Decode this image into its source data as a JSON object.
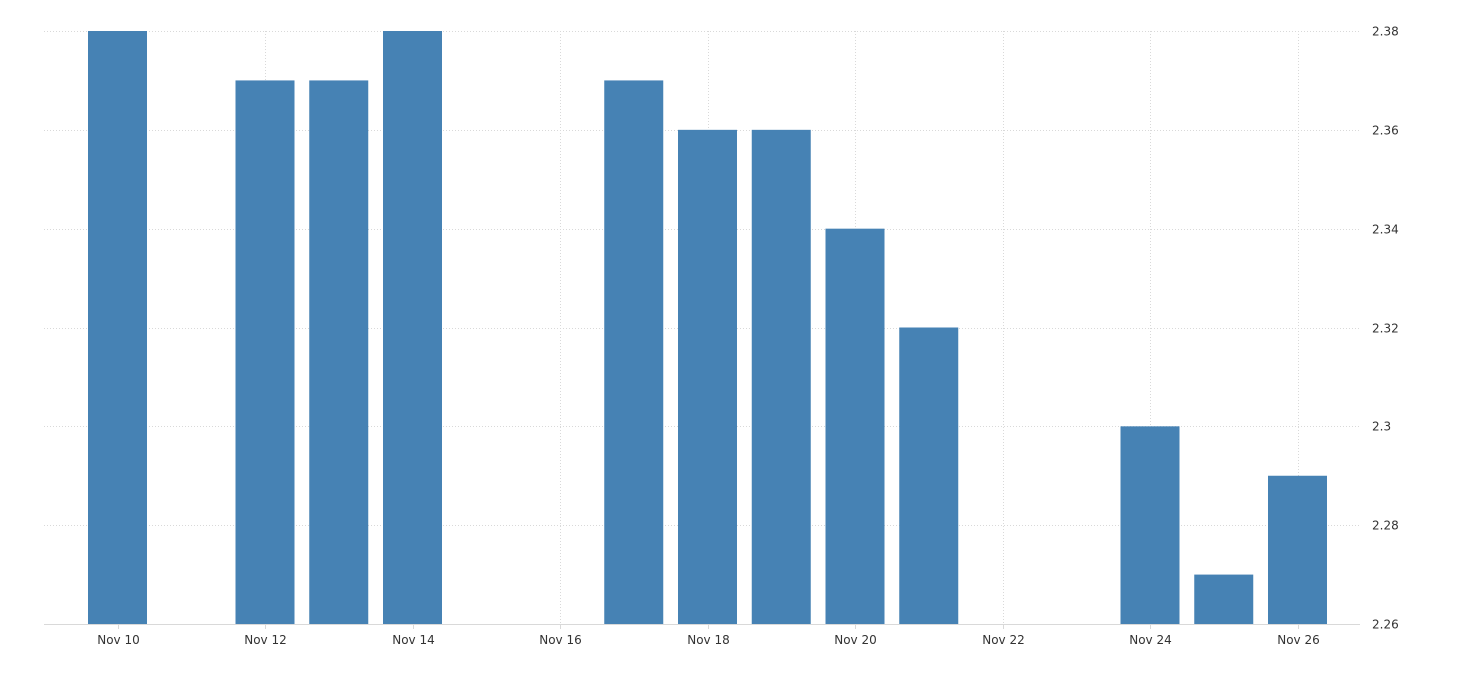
{
  "chart_data": {
    "type": "bar",
    "categories": [
      "Nov 10",
      "Nov 11",
      "Nov 12",
      "Nov 13",
      "Nov 14",
      "Nov 15",
      "Nov 16",
      "Nov 17",
      "Nov 18",
      "Nov 19",
      "Nov 20",
      "Nov 21",
      "Nov 22",
      "Nov 23",
      "Nov 24",
      "Nov 25",
      "Nov 26"
    ],
    "values": [
      2.38,
      null,
      2.37,
      2.37,
      2.38,
      null,
      null,
      2.37,
      2.36,
      2.36,
      2.34,
      2.32,
      null,
      null,
      2.3,
      2.27,
      2.29
    ],
    "x_tick_labels": [
      "Nov 10",
      "Nov 12",
      "Nov 14",
      "Nov 16",
      "Nov 18",
      "Nov 20",
      "Nov 22",
      "Nov 24",
      "Nov 26"
    ],
    "y_ticks": [
      2.26,
      2.28,
      2.3,
      2.32,
      2.34,
      2.36,
      2.38
    ],
    "y_tick_labels": [
      "2.26",
      "2.28",
      "2.3",
      "2.32",
      "2.34",
      "2.36",
      "2.38"
    ],
    "ylim": [
      2.26,
      2.38
    ],
    "y_axis_position": "right",
    "grid": true,
    "bar_color": "#4682b4",
    "title": "",
    "xlabel": "",
    "ylabel": ""
  }
}
